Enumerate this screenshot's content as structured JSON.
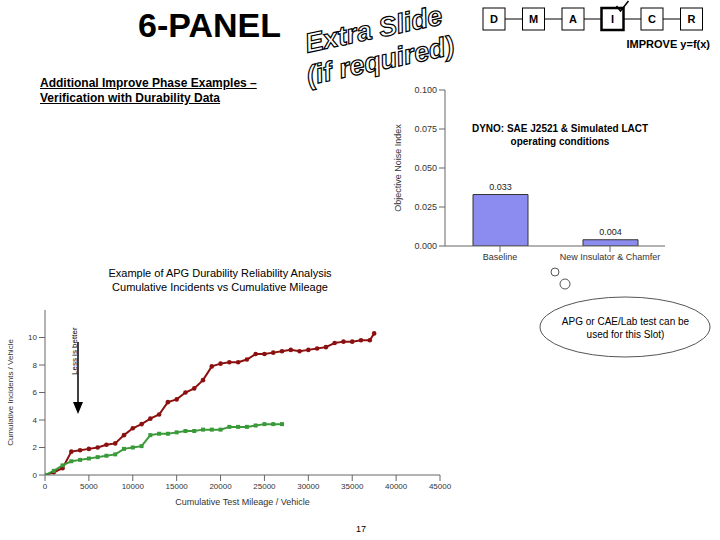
{
  "slide": {
    "title": "6-PANEL",
    "stamp": [
      "Extra Slide",
      "(if required)"
    ],
    "steps": [
      "D",
      "M",
      "A",
      "I",
      "C",
      "R"
    ],
    "active_step": "I",
    "phase": "IMPROVE y=f(x)",
    "subtitle": "Additional Improve Phase Examples – Verification with Durability Data",
    "callout": "APG or CAE/Lab test can be used for this Slot)",
    "page": "17"
  },
  "chart_data": [
    {
      "type": "bar",
      "ylabel": "Objective Noise Index",
      "annotation": "DYNO: SAE J2521 & Simulated LACT operating conditions",
      "categories": [
        "Baseline",
        "New Insulator & Chamfer"
      ],
      "values": [
        0.033,
        0.004
      ],
      "color": "#8c8cf0",
      "ylim": [
        0,
        0.1
      ],
      "yticks": [
        {
          "value": 0,
          "label": "0.000"
        },
        0.025,
        {
          "value": 0.05,
          "label": "0.050"
        },
        0.075,
        {
          "value": 0.1,
          "label": "0.100"
        }
      ],
      "grid": false,
      "data_labels": true
    },
    {
      "type": "line",
      "title": "Example of APG Durability Reliability Analysis",
      "subtitle": "Cumulative Incidents vs Cumulative Mileage",
      "xlabel": "Cumulative Test Mileage / Vehicle",
      "ylabel": "Cumulative Incidents / Vehicle",
      "annotation": "Less is better",
      "xlim": [
        0,
        45000
      ],
      "xticks": [
        0,
        5000,
        10000,
        15000,
        20000,
        25000,
        30000,
        35000,
        40000,
        45000
      ],
      "ylim": [
        0,
        12
      ],
      "yticks": [
        0,
        2,
        4,
        6,
        8,
        10
      ],
      "grid": false,
      "series": [
        {
          "color": "#8b1010",
          "marker": "circle",
          "line_style": "solid",
          "x": [
            0,
            1000,
            2000,
            3000,
            4000,
            5000,
            6000,
            7000,
            8000,
            9000,
            10000,
            11000,
            12000,
            13000,
            14000,
            15000,
            16000,
            17000,
            18000,
            19000,
            20000,
            21000,
            22000,
            23000,
            24000,
            25000,
            26000,
            27000,
            28000,
            29000,
            30000,
            31000,
            32000,
            33000,
            34000,
            35000,
            36000,
            37000,
            37500
          ],
          "values": [
            0,
            0.2,
            0.5,
            1.7,
            1.8,
            1.9,
            2.0,
            2.2,
            2.3,
            2.9,
            3.4,
            3.7,
            4.1,
            4.4,
            5.3,
            5.5,
            6.0,
            6.3,
            6.9,
            7.9,
            8.1,
            8.2,
            8.2,
            8.4,
            8.8,
            8.8,
            8.9,
            9.0,
            9.1,
            9.0,
            9.1,
            9.2,
            9.3,
            9.6,
            9.7,
            9.7,
            9.8,
            9.8,
            10.3
          ]
        },
        {
          "color": "#3a9a3a",
          "marker": "square",
          "line_style": "solid",
          "x": [
            0,
            1000,
            2000,
            3000,
            4000,
            5000,
            6000,
            7000,
            8000,
            9000,
            10000,
            11000,
            12000,
            13000,
            14000,
            15000,
            16000,
            17000,
            18000,
            19000,
            20000,
            21000,
            22000,
            23000,
            24000,
            25000,
            26000,
            27000
          ],
          "values": [
            0,
            0.3,
            0.7,
            1.0,
            1.1,
            1.2,
            1.3,
            1.4,
            1.5,
            1.9,
            2.0,
            2.1,
            2.9,
            3.0,
            3.0,
            3.1,
            3.2,
            3.2,
            3.3,
            3.3,
            3.3,
            3.5,
            3.5,
            3.5,
            3.6,
            3.7,
            3.7,
            3.7
          ]
        }
      ]
    }
  ]
}
